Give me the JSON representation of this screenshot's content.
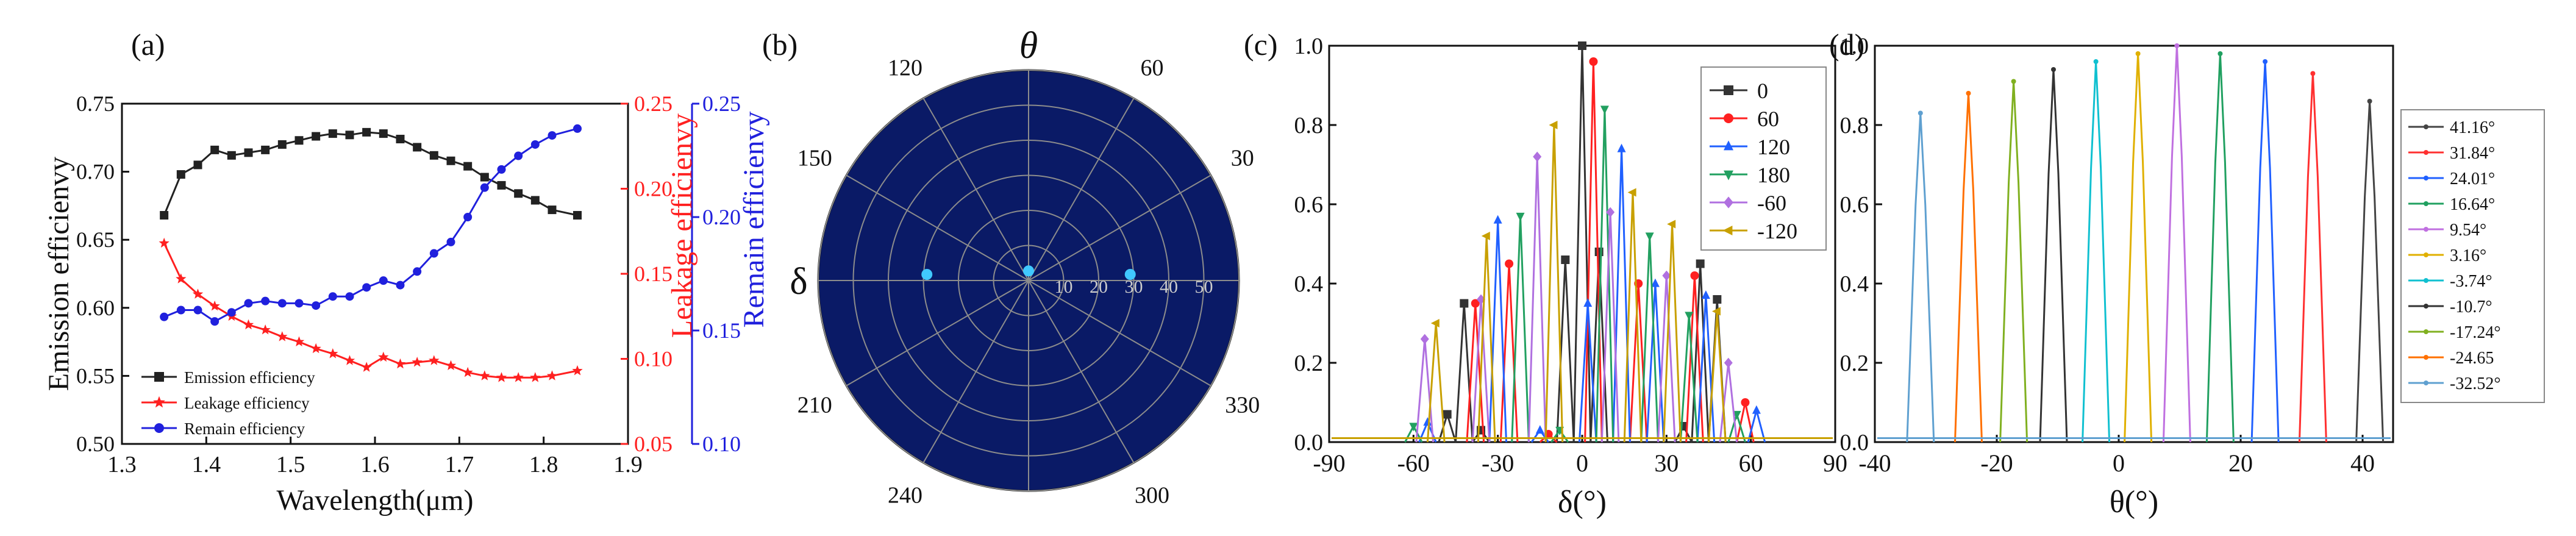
{
  "colors": {
    "black": "#222222",
    "red": "#ff2020",
    "blue": "#2020dd",
    "polar_bg": "#0a1a66",
    "polar_grid": "#8c8c8c",
    "polar_dot": "#40c8ff"
  },
  "chart_data": [
    {
      "panel": "(a)",
      "type": "line",
      "xlabel": "Wavelength(μm)",
      "ylabel": "Emission efficienvy",
      "ylabel_right1": "Leakage efficienvy",
      "ylabel_right2": "Remain efficienvy",
      "xlim": [
        1.3,
        1.9
      ],
      "ylim": [
        0.5,
        0.75
      ],
      "ylim_right1": [
        0.05,
        0.25
      ],
      "ylim_right2": [
        0.1,
        0.25
      ],
      "xticks": [
        "1.3",
        "1.4",
        "1.5",
        "1.6",
        "1.7",
        "1.8",
        "1.9"
      ],
      "yticks": [
        "0.50",
        "0.55",
        "0.60",
        "0.65",
        "0.70",
        "0.75"
      ],
      "yticks_right1": [
        "0.05",
        "0.10",
        "0.15",
        "0.20",
        "0.25"
      ],
      "yticks_right2": [
        "0.10",
        "0.15",
        "0.20",
        "0.25"
      ],
      "legend_position": "bottom-left",
      "x": [
        1.35,
        1.37,
        1.39,
        1.41,
        1.43,
        1.45,
        1.47,
        1.49,
        1.51,
        1.53,
        1.55,
        1.57,
        1.59,
        1.61,
        1.63,
        1.65,
        1.67,
        1.69,
        1.71,
        1.73,
        1.75,
        1.77,
        1.79,
        1.81,
        1.84
      ],
      "series": [
        {
          "name": "Emission efficiency",
          "axis": "left",
          "color": "#222222",
          "marker": "square",
          "values": [
            0.668,
            0.698,
            0.705,
            0.716,
            0.712,
            0.714,
            0.716,
            0.72,
            0.723,
            0.726,
            0.728,
            0.727,
            0.729,
            0.728,
            0.724,
            0.718,
            0.712,
            0.708,
            0.704,
            0.696,
            0.69,
            0.684,
            0.679,
            0.672,
            0.668
          ]
        },
        {
          "name": "Leakage efficiency",
          "axis": "right1",
          "color": "#ff2020",
          "marker": "star",
          "values": [
            0.168,
            0.147,
            0.138,
            0.131,
            0.125,
            0.12,
            0.117,
            0.113,
            0.11,
            0.106,
            0.103,
            0.099,
            0.095,
            0.101,
            0.097,
            0.098,
            0.099,
            0.096,
            0.092,
            0.09,
            0.089,
            0.089,
            0.089,
            0.09,
            0.093
          ]
        },
        {
          "name": "Remain efficiency",
          "axis": "right2",
          "color": "#2020dd",
          "marker": "circle",
          "values": [
            0.156,
            0.159,
            0.159,
            0.154,
            0.158,
            0.162,
            0.163,
            0.162,
            0.162,
            0.161,
            0.165,
            0.165,
            0.169,
            0.172,
            0.17,
            0.176,
            0.184,
            0.189,
            0.2,
            0.213,
            0.221,
            0.227,
            0.232,
            0.236,
            0.239
          ]
        }
      ]
    },
    {
      "panel": "(b)",
      "type": "scatter",
      "subtype": "polar",
      "theta_label": "θ",
      "radial_label": "δ",
      "angle_labels": [
        "30",
        "60",
        "120",
        "150",
        "210",
        "240",
        "300",
        "330"
      ],
      "radial_ticks": [
        "10",
        "20",
        "30",
        "40",
        "50"
      ],
      "rlim": [
        0,
        60
      ],
      "points": [
        {
          "angle": 0,
          "r": 29
        },
        {
          "angle": 90,
          "r": 1
        },
        {
          "angle": 180,
          "r": 29
        }
      ]
    },
    {
      "panel": "(c)",
      "type": "line",
      "xlabel": "δ(°)",
      "xlim": [
        -90,
        90
      ],
      "ylim": [
        0,
        1.0
      ],
      "xticks": [
        "-90",
        "-60",
        "-30",
        "0",
        "30",
        "60",
        "90"
      ],
      "yticks": [
        "0.0",
        "0.2",
        "0.4",
        "0.6",
        "0.8",
        "1.0"
      ],
      "legend_position": "top-right",
      "series": [
        {
          "name": "0",
          "color": "#333333",
          "marker": "square",
          "peaks": [
            [
              -48,
              0.07
            ],
            [
              -42,
              0.35
            ],
            [
              -36,
              0.03
            ],
            [
              -6,
              0.46
            ],
            [
              0,
              1.0
            ],
            [
              6,
              0.48
            ],
            [
              36,
              0.04
            ],
            [
              42,
              0.45
            ],
            [
              48,
              0.36
            ]
          ]
        },
        {
          "name": "60",
          "color": "#ff2020",
          "marker": "circle",
          "peaks": [
            [
              -38,
              0.35
            ],
            [
              -26,
              0.45
            ],
            [
              -12,
              0.02
            ],
            [
              4,
              0.96
            ],
            [
              20,
              0.4
            ],
            [
              40,
              0.42
            ],
            [
              58,
              0.1
            ]
          ]
        },
        {
          "name": "120",
          "color": "#2060ff",
          "marker": "triangle-up",
          "peaks": [
            [
              -55,
              0.05
            ],
            [
              -30,
              0.56
            ],
            [
              -15,
              0.03
            ],
            [
              2,
              0.35
            ],
            [
              14,
              0.74
            ],
            [
              26,
              0.4
            ],
            [
              44,
              0.37
            ],
            [
              62,
              0.08
            ]
          ]
        },
        {
          "name": "180",
          "color": "#22a060",
          "marker": "triangle-down",
          "peaks": [
            [
              -60,
              0.04
            ],
            [
              -22,
              0.57
            ],
            [
              -8,
              0.03
            ],
            [
              8,
              0.84
            ],
            [
              24,
              0.52
            ],
            [
              38,
              0.32
            ],
            [
              55,
              0.07
            ]
          ]
        },
        {
          "name": "-60",
          "color": "#b070e0",
          "marker": "diamond",
          "peaks": [
            [
              -56,
              0.26
            ],
            [
              -36,
              0.36
            ],
            [
              -16,
              0.72
            ],
            [
              10,
              0.58
            ],
            [
              30,
              0.42
            ],
            [
              52,
              0.2
            ]
          ]
        },
        {
          "name": "-120",
          "color": "#c8a000",
          "marker": "triangle-left",
          "peaks": [
            [
              -52,
              0.3
            ],
            [
              -34,
              0.52
            ],
            [
              -10,
              0.8
            ],
            [
              18,
              0.63
            ],
            [
              32,
              0.55
            ],
            [
              48,
              0.33
            ]
          ]
        }
      ]
    },
    {
      "panel": "(d)",
      "type": "line",
      "xlabel": "θ(°)",
      "xlim": [
        -40,
        45
      ],
      "ylim": [
        0,
        1.0
      ],
      "xticks": [
        "-40",
        "-20",
        "0",
        "20",
        "40"
      ],
      "yticks": [
        "0.0",
        "0.2",
        "0.4",
        "0.6",
        "0.8",
        "1.0"
      ],
      "legend_position": "top-right",
      "series": [
        {
          "name": "41.16°",
          "color": "#444444",
          "peak": [
            41.16,
            0.86
          ]
        },
        {
          "name": "31.84°",
          "color": "#ff3030",
          "peak": [
            31.84,
            0.93
          ]
        },
        {
          "name": "24.01°",
          "color": "#2060ff",
          "peak": [
            24.01,
            0.96
          ]
        },
        {
          "name": "16.64°",
          "color": "#20a060",
          "peak": [
            16.64,
            0.98
          ]
        },
        {
          "name": "9.54°",
          "color": "#c070e0",
          "peak": [
            9.54,
            1.0
          ]
        },
        {
          "name": "3.16°",
          "color": "#e0b000",
          "peak": [
            3.16,
            0.98
          ]
        },
        {
          "name": "-3.74°",
          "color": "#10c0d0",
          "peak": [
            -3.74,
            0.96
          ]
        },
        {
          "name": "-10.7°",
          "color": "#333333",
          "peak": [
            -10.7,
            0.94
          ]
        },
        {
          "name": "-17.24°",
          "color": "#80b020",
          "peak": [
            -17.24,
            0.91
          ]
        },
        {
          "name": "-24.65",
          "color": "#ff7000",
          "peak": [
            -24.65,
            0.88
          ]
        },
        {
          "name": "-32.52°",
          "color": "#5fa0d0",
          "peak": [
            -32.52,
            0.83
          ]
        }
      ]
    }
  ],
  "labels": {
    "panel_a": "(a)",
    "panel_b": "(b)",
    "panel_c": "(c)",
    "panel_d": "(d)"
  }
}
